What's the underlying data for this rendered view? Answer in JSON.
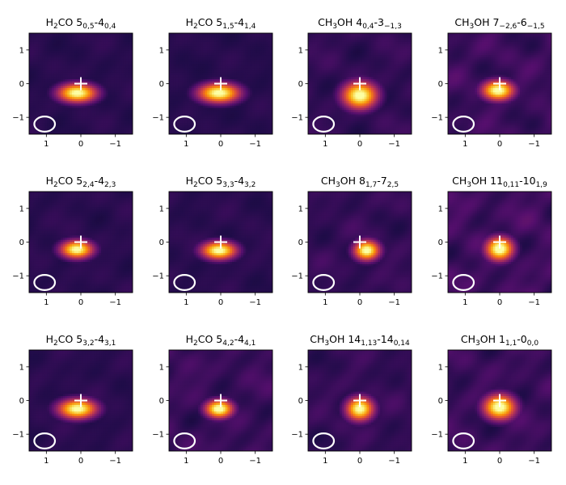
{
  "chart_data": {
    "type": "heatmap",
    "colormap": "inferno",
    "grid": false,
    "axes": {
      "xlim": [
        1.5,
        -1.5
      ],
      "ylim": [
        -1.5,
        1.5
      ],
      "xticks": [
        1,
        0,
        -1
      ],
      "xtick_labels": [
        "1",
        "0",
        "−1"
      ],
      "yticks": [
        1,
        0,
        -1
      ],
      "ytick_labels": [
        "1",
        "0",
        "−1"
      ]
    },
    "markers": {
      "source_position": [
        0,
        0
      ],
      "source_marker": "cross",
      "beam_center": [
        1.05,
        -1.2
      ],
      "beam_size": [
        0.6,
        0.45
      ]
    },
    "panels": [
      {
        "molecule": "H",
        "sub": "2",
        "rest": "CO 5",
        "lo": "0,5",
        "mid": "-4",
        "lo2": "0,4",
        "peak": [
          0.1,
          -0.28
        ],
        "spread": [
          0.42,
          0.21
        ],
        "noise": 0.18
      },
      {
        "molecule": "H",
        "sub": "2",
        "rest": "CO 5",
        "lo": "1,5",
        "mid": "-4",
        "lo2": "1,4",
        "peak": [
          0.05,
          -0.28
        ],
        "spread": [
          0.45,
          0.22
        ],
        "noise": 0.16
      },
      {
        "molecule": "CH",
        "sub": "3",
        "rest": "OH 4",
        "lo": "0,4",
        "mid": "-3",
        "lo2": "−1,3",
        "peak": [
          0.0,
          -0.35
        ],
        "spread": [
          0.38,
          0.3
        ],
        "noise": 0.3
      },
      {
        "molecule": "CH",
        "sub": "3",
        "rest": "OH 7",
        "lo": "−2,6",
        "mid": "-6",
        "lo2": "−1,5",
        "peak": [
          0.05,
          -0.2
        ],
        "spread": [
          0.34,
          0.22
        ],
        "noise": 0.42
      },
      {
        "molecule": "H",
        "sub": "2",
        "rest": "CO 5",
        "lo": "2,4",
        "mid": "-4",
        "lo2": "2,3",
        "peak": [
          0.12,
          -0.22
        ],
        "spread": [
          0.35,
          0.2
        ],
        "noise": 0.2
      },
      {
        "molecule": "H",
        "sub": "2",
        "rest": "CO 5",
        "lo": "3,3",
        "mid": "-4",
        "lo2": "3,2",
        "peak": [
          0.05,
          -0.25
        ],
        "spread": [
          0.38,
          0.2
        ],
        "noise": 0.2
      },
      {
        "molecule": "CH",
        "sub": "3",
        "rest": "OH 8",
        "lo": "1,7",
        "mid": "-7",
        "lo2": "2,5",
        "peak": [
          -0.2,
          -0.25
        ],
        "spread": [
          0.28,
          0.22
        ],
        "noise": 0.32
      },
      {
        "molecule": "CH",
        "sub": "3",
        "rest": "OH 11",
        "lo": "0,11",
        "mid": "-10",
        "lo2": "1,9",
        "peak": [
          0.0,
          -0.2
        ],
        "spread": [
          0.3,
          0.26
        ],
        "noise": 0.48
      },
      {
        "molecule": "H",
        "sub": "2",
        "rest": "CO 5",
        "lo": "3,2",
        "mid": "-4",
        "lo2": "3,1",
        "peak": [
          0.1,
          -0.25
        ],
        "spread": [
          0.42,
          0.22
        ],
        "noise": 0.2
      },
      {
        "molecule": "H",
        "sub": "2",
        "rest": "CO 5",
        "lo": "4,2",
        "mid": "-4",
        "lo2": "4,1",
        "peak": [
          0.05,
          -0.25
        ],
        "spread": [
          0.3,
          0.2
        ],
        "noise": 0.4
      },
      {
        "molecule": "CH",
        "sub": "3",
        "rest": "OH 14",
        "lo": "1,13",
        "mid": "-14",
        "lo2": "0,14",
        "peak": [
          0.0,
          -0.25
        ],
        "spread": [
          0.3,
          0.26
        ],
        "noise": 0.32
      },
      {
        "molecule": "CH",
        "sub": "3",
        "rest": "OH 1",
        "lo": "1,1",
        "mid": "-0",
        "lo2": "0,0",
        "peak": [
          0.0,
          -0.2
        ],
        "spread": [
          0.35,
          0.28
        ],
        "noise": 0.4
      }
    ]
  }
}
